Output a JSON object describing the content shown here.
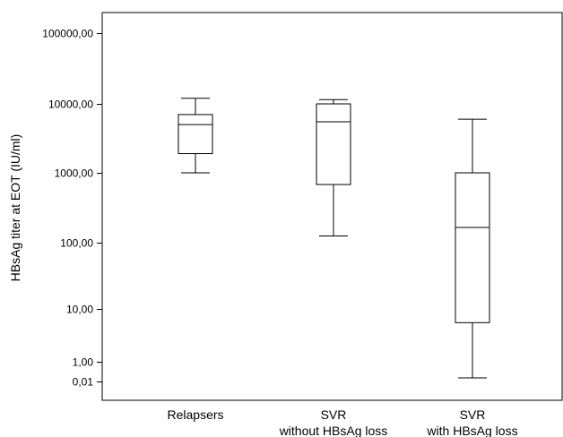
{
  "chart_data": {
    "type": "box",
    "title": "",
    "xlabel": "",
    "ylabel": "HBsAg titer at EOT (IU/ml)",
    "y_scale": "log (non-uniform lower ticks)",
    "y_ticks": [
      {
        "value": 0.01,
        "label": "0,01"
      },
      {
        "value": 1,
        "label": "1,00"
      },
      {
        "value": 10,
        "label": "10,00"
      },
      {
        "value": 100,
        "label": "100,00"
      },
      {
        "value": 1000,
        "label": "1000,00"
      },
      {
        "value": 10000,
        "label": "10000,00"
      },
      {
        "value": 100000,
        "label": "100000,00"
      }
    ],
    "categories": [
      [
        "Relapsers"
      ],
      [
        "SVR",
        "without HBsAg loss"
      ],
      [
        "SVR",
        "with HBsAg loss"
      ]
    ],
    "boxes": [
      {
        "whisker_low": 1000,
        "q1": 1900,
        "median": 5000,
        "q3": 7000,
        "whisker_high": 12000
      },
      {
        "whisker_low": 125,
        "q1": 680,
        "median": 5500,
        "q3": 10000,
        "whisker_high": 11500
      },
      {
        "whisker_low": 0.005,
        "q1": 5.5,
        "median": 165,
        "q3": 1000,
        "whisker_high": 6000
      }
    ],
    "grid": false,
    "legend": "none"
  }
}
